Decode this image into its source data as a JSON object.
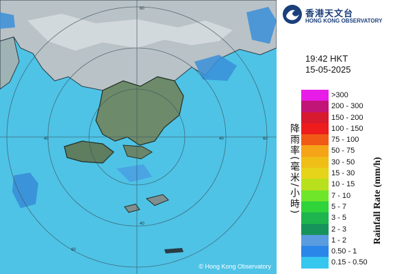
{
  "map": {
    "ring_labels": [
      "60",
      "60",
      "60",
      "40",
      "40",
      "40"
    ],
    "copyright": "© Hong Kong Observatory"
  },
  "header": {
    "org_cn": "香港天文台",
    "org_en": "HONG KONG OBSERVATORY"
  },
  "timestamp": {
    "time": "19:42 HKT",
    "date": "15-05-2025"
  },
  "legend": {
    "title_en": "Rainfall Rate (mm/h)",
    "title_cn": "降雨率(毫米/小時)",
    "items": [
      {
        "label": ">300",
        "color": "#e81ce8"
      },
      {
        "label": "200 - 300",
        "color": "#c11677"
      },
      {
        "label": "150 - 200",
        "color": "#d71a2e"
      },
      {
        "label": "100 - 150",
        "color": "#ee1c1c"
      },
      {
        "label": "75 - 100",
        "color": "#f05a16"
      },
      {
        "label": "50 - 75",
        "color": "#f5a418"
      },
      {
        "label": "30 - 50",
        "color": "#efbf17"
      },
      {
        "label": "15 - 30",
        "color": "#e6d41a"
      },
      {
        "label": "10 - 15",
        "color": "#b9e01c"
      },
      {
        "label": "7 - 10",
        "color": "#6fe62a"
      },
      {
        "label": "5 - 7",
        "color": "#2fd33a"
      },
      {
        "label": "3 - 5",
        "color": "#1eb44e"
      },
      {
        "label": "2 - 3",
        "color": "#16935a"
      },
      {
        "label": "1 - 2",
        "color": "#5a9ce0"
      },
      {
        "label": "0.50 - 1",
        "color": "#2a86e8"
      },
      {
        "label": "0.15 - 0.50",
        "color": "#36c7ef"
      }
    ]
  }
}
